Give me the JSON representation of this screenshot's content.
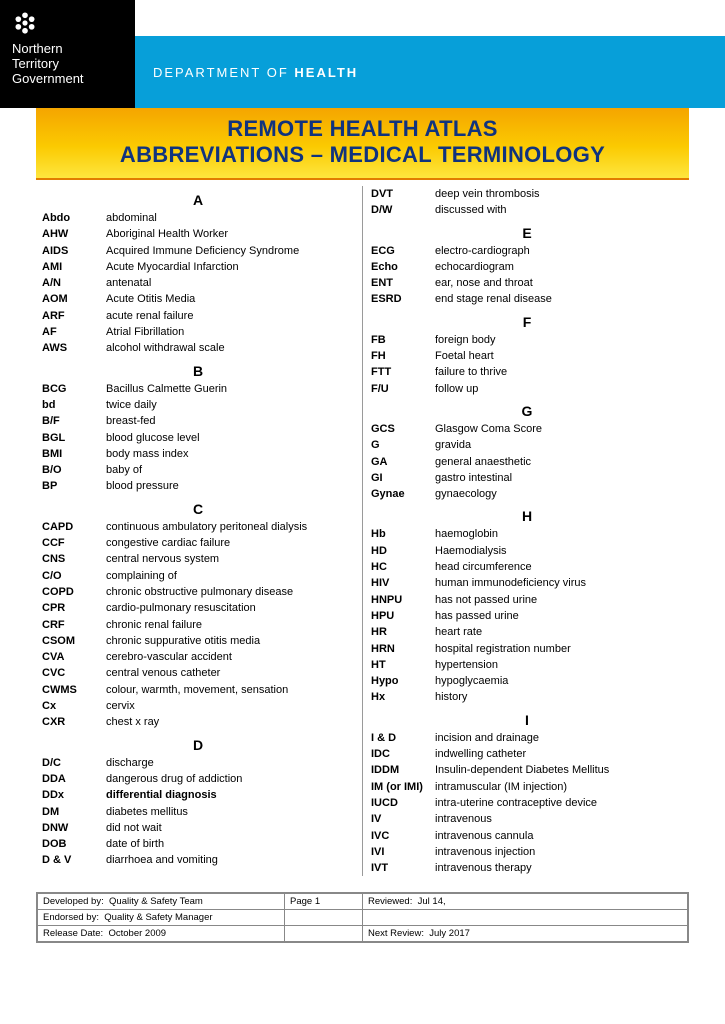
{
  "gov": {
    "l1": "Northern",
    "l2": "Territory",
    "l3": "Government"
  },
  "dept": {
    "prefix": "DEPARTMENT OF ",
    "name": "HEALTH"
  },
  "title": {
    "l1": "REMOTE HEALTH ATLAS",
    "l2": "ABBREVIATIONS – MEDICAL TERMINOLOGY"
  },
  "colors": {
    "blue": "#079fd9",
    "titleText": "#10337e"
  },
  "left": [
    {
      "head": "A",
      "items": [
        {
          "a": "Abdo",
          "d": "abdominal"
        },
        {
          "a": "AHW",
          "d": "Aboriginal Health Worker"
        },
        {
          "a": "AIDS",
          "d": "Acquired Immune Deficiency Syndrome"
        },
        {
          "a": "AMI",
          "d": "Acute Myocardial Infarction"
        },
        {
          "a": "A/N",
          "d": "antenatal"
        },
        {
          "a": "AOM",
          "d": "Acute Otitis Media"
        },
        {
          "a": "ARF",
          "d": "acute renal failure"
        },
        {
          "a": "AF",
          "d": "Atrial Fibrillation"
        },
        {
          "a": "AWS",
          "d": "alcohol withdrawal scale"
        }
      ]
    },
    {
      "head": "B",
      "items": [
        {
          "a": "BCG",
          "d": "Bacillus Calmette Guerin"
        },
        {
          "a": "bd",
          "d": "twice daily"
        },
        {
          "a": "B/F",
          "d": "breast-fed"
        },
        {
          "a": "BGL",
          "d": "blood glucose level"
        },
        {
          "a": "BMI",
          "d": "body mass index"
        },
        {
          "a": "B/O",
          "d": "baby of"
        },
        {
          "a": "BP",
          "d": "blood pressure"
        }
      ]
    },
    {
      "head": "C",
      "items": [
        {
          "a": "CAPD",
          "d": "continuous ambulatory peritoneal dialysis"
        },
        {
          "a": "CCF",
          "d": "congestive cardiac failure"
        },
        {
          "a": "CNS",
          "d": "central nervous system"
        },
        {
          "a": "C/O",
          "d": "complaining of"
        },
        {
          "a": "COPD",
          "d": "chronic obstructive pulmonary disease"
        },
        {
          "a": "CPR",
          "d": "cardio-pulmonary resuscitation"
        },
        {
          "a": "CRF",
          "d": "chronic renal failure"
        },
        {
          "a": "CSOM",
          "d": "chronic suppurative otitis media"
        },
        {
          "a": "CVA",
          "d": "cerebro-vascular accident"
        },
        {
          "a": "CVC",
          "d": "central venous catheter"
        },
        {
          "a": "CWMS",
          "d": "colour, warmth, movement, sensation"
        },
        {
          "a": "Cx",
          "d": "cervix"
        },
        {
          "a": "CXR",
          "d": "chest x ray"
        }
      ]
    },
    {
      "head": "D",
      "items": [
        {
          "a": "D/C",
          "d": "discharge"
        },
        {
          "a": "DDA",
          "d": "dangerous drug of addiction"
        },
        {
          "a": "DDx",
          "d": "differential diagnosis",
          "bold": true
        },
        {
          "a": "DM",
          "d": "diabetes mellitus"
        },
        {
          "a": "DNW",
          "d": "did not wait"
        },
        {
          "a": "DOB",
          "d": "date of birth"
        },
        {
          "a": "D & V",
          "d": "diarrhoea and vomiting"
        }
      ]
    }
  ],
  "right": [
    {
      "items": [
        {
          "a": "DVT",
          "d": "deep vein thrombosis"
        },
        {
          "a": "D/W",
          "d": "discussed with"
        }
      ]
    },
    {
      "head": "E",
      "items": [
        {
          "a": "ECG",
          "d": "electro-cardiograph"
        },
        {
          "a": "Echo",
          "d": "echocardiogram"
        },
        {
          "a": "ENT",
          "d": "ear, nose and throat"
        },
        {
          "a": "ESRD",
          "d": "end stage renal disease"
        }
      ]
    },
    {
      "head": "F",
      "items": [
        {
          "a": "FB",
          "d": "foreign body"
        },
        {
          "a": "FH",
          "d": "Foetal heart"
        },
        {
          "a": "FTT",
          "d": "failure to thrive"
        },
        {
          "a": "F/U",
          "d": "follow up"
        }
      ]
    },
    {
      "head": "G",
      "items": [
        {
          "a": "GCS",
          "d": "Glasgow Coma Score"
        },
        {
          "a": "G",
          "d": "gravida"
        },
        {
          "a": "GA",
          "d": "general anaesthetic"
        },
        {
          "a": "GI",
          "d": "gastro intestinal"
        },
        {
          "a": "Gynae",
          "d": "gynaecology"
        }
      ]
    },
    {
      "head": "H",
      "items": [
        {
          "a": "Hb",
          "d": "haemoglobin"
        },
        {
          "a": "HD",
          "d": "Haemodialysis"
        },
        {
          "a": "HC",
          "d": "head circumference"
        },
        {
          "a": "HIV",
          "d": "human immunodeficiency virus"
        },
        {
          "a": "HNPU",
          "d": "has not passed urine"
        },
        {
          "a": "HPU",
          "d": "has passed urine"
        },
        {
          "a": "HR",
          "d": "heart rate"
        },
        {
          "a": "HRN",
          "d": "hospital registration number"
        },
        {
          "a": "HT",
          "d": "hypertension"
        },
        {
          "a": "Hypo",
          "d": "hypoglycaemia"
        },
        {
          "a": "Hx",
          "d": "history"
        }
      ]
    },
    {
      "head": "I",
      "items": [
        {
          "a": "I & D",
          "d": "incision and drainage"
        },
        {
          "a": "IDC",
          "d": "indwelling catheter"
        },
        {
          "a": "IDDM",
          "d": "Insulin-dependent Diabetes Mellitus"
        },
        {
          "a": "IM (or IMI)",
          "d": "intramuscular (IM injection)"
        },
        {
          "a": "IUCD",
          "d": "intra-uterine contraceptive device"
        },
        {
          "a": "IV",
          "d": "intravenous"
        },
        {
          "a": "IVC",
          "d": "intravenous cannula"
        },
        {
          "a": "IVI",
          "d": "intravenous injection"
        },
        {
          "a": "IVT",
          "d": "intravenous therapy"
        }
      ]
    }
  ],
  "footer": {
    "dev_by_label": "Developed by:",
    "dev_by": "Quality & Safety Team",
    "endorsed_label": "Endorsed by:",
    "endorsed": "Quality & Safety Manager",
    "release_label": "Release Date:",
    "release": "October 2009",
    "page": "Page 1",
    "reviewed_label": "Reviewed:",
    "reviewed": "Jul 14,",
    "next_label": "Next Review:",
    "next": "July 2017"
  }
}
